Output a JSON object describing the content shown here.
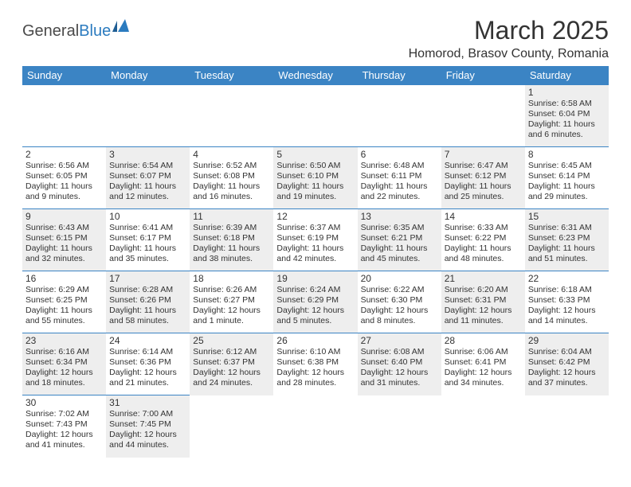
{
  "logo": {
    "part1": "General",
    "part2": "Blue"
  },
  "title": "March 2025",
  "location": "Homorod, Brasov County, Romania",
  "styling": {
    "header_bg": "#3b84c4",
    "header_fg": "#ffffff",
    "cell_border": "#3b84c4",
    "shaded_bg": "#eeeeee",
    "text_color": "#333333",
    "logo_accent": "#2b7bbf",
    "page_bg": "#ffffff",
    "month_title_fontsize": 32,
    "location_fontsize": 16,
    "dayhead_fontsize": 13,
    "daynum_fontsize": 12,
    "dayinfo_fontsize": 10.5
  },
  "day_headers": [
    "Sunday",
    "Monday",
    "Tuesday",
    "Wednesday",
    "Thursday",
    "Friday",
    "Saturday"
  ],
  "weeks": [
    [
      null,
      null,
      null,
      null,
      null,
      null,
      {
        "n": "1",
        "sr": "6:58 AM",
        "ss": "6:04 PM",
        "dl": "11 hours and 6 minutes."
      }
    ],
    [
      {
        "n": "2",
        "sr": "6:56 AM",
        "ss": "6:05 PM",
        "dl": "11 hours and 9 minutes."
      },
      {
        "n": "3",
        "sr": "6:54 AM",
        "ss": "6:07 PM",
        "dl": "11 hours and 12 minutes."
      },
      {
        "n": "4",
        "sr": "6:52 AM",
        "ss": "6:08 PM",
        "dl": "11 hours and 16 minutes."
      },
      {
        "n": "5",
        "sr": "6:50 AM",
        "ss": "6:10 PM",
        "dl": "11 hours and 19 minutes."
      },
      {
        "n": "6",
        "sr": "6:48 AM",
        "ss": "6:11 PM",
        "dl": "11 hours and 22 minutes."
      },
      {
        "n": "7",
        "sr": "6:47 AM",
        "ss": "6:12 PM",
        "dl": "11 hours and 25 minutes."
      },
      {
        "n": "8",
        "sr": "6:45 AM",
        "ss": "6:14 PM",
        "dl": "11 hours and 29 minutes."
      }
    ],
    [
      {
        "n": "9",
        "sr": "6:43 AM",
        "ss": "6:15 PM",
        "dl": "11 hours and 32 minutes."
      },
      {
        "n": "10",
        "sr": "6:41 AM",
        "ss": "6:17 PM",
        "dl": "11 hours and 35 minutes."
      },
      {
        "n": "11",
        "sr": "6:39 AM",
        "ss": "6:18 PM",
        "dl": "11 hours and 38 minutes."
      },
      {
        "n": "12",
        "sr": "6:37 AM",
        "ss": "6:19 PM",
        "dl": "11 hours and 42 minutes."
      },
      {
        "n": "13",
        "sr": "6:35 AM",
        "ss": "6:21 PM",
        "dl": "11 hours and 45 minutes."
      },
      {
        "n": "14",
        "sr": "6:33 AM",
        "ss": "6:22 PM",
        "dl": "11 hours and 48 minutes."
      },
      {
        "n": "15",
        "sr": "6:31 AM",
        "ss": "6:23 PM",
        "dl": "11 hours and 51 minutes."
      }
    ],
    [
      {
        "n": "16",
        "sr": "6:29 AM",
        "ss": "6:25 PM",
        "dl": "11 hours and 55 minutes."
      },
      {
        "n": "17",
        "sr": "6:28 AM",
        "ss": "6:26 PM",
        "dl": "11 hours and 58 minutes."
      },
      {
        "n": "18",
        "sr": "6:26 AM",
        "ss": "6:27 PM",
        "dl": "12 hours and 1 minute."
      },
      {
        "n": "19",
        "sr": "6:24 AM",
        "ss": "6:29 PM",
        "dl": "12 hours and 5 minutes."
      },
      {
        "n": "20",
        "sr": "6:22 AM",
        "ss": "6:30 PM",
        "dl": "12 hours and 8 minutes."
      },
      {
        "n": "21",
        "sr": "6:20 AM",
        "ss": "6:31 PM",
        "dl": "12 hours and 11 minutes."
      },
      {
        "n": "22",
        "sr": "6:18 AM",
        "ss": "6:33 PM",
        "dl": "12 hours and 14 minutes."
      }
    ],
    [
      {
        "n": "23",
        "sr": "6:16 AM",
        "ss": "6:34 PM",
        "dl": "12 hours and 18 minutes."
      },
      {
        "n": "24",
        "sr": "6:14 AM",
        "ss": "6:36 PM",
        "dl": "12 hours and 21 minutes."
      },
      {
        "n": "25",
        "sr": "6:12 AM",
        "ss": "6:37 PM",
        "dl": "12 hours and 24 minutes."
      },
      {
        "n": "26",
        "sr": "6:10 AM",
        "ss": "6:38 PM",
        "dl": "12 hours and 28 minutes."
      },
      {
        "n": "27",
        "sr": "6:08 AM",
        "ss": "6:40 PM",
        "dl": "12 hours and 31 minutes."
      },
      {
        "n": "28",
        "sr": "6:06 AM",
        "ss": "6:41 PM",
        "dl": "12 hours and 34 minutes."
      },
      {
        "n": "29",
        "sr": "6:04 AM",
        "ss": "6:42 PM",
        "dl": "12 hours and 37 minutes."
      }
    ],
    [
      {
        "n": "30",
        "sr": "7:02 AM",
        "ss": "7:43 PM",
        "dl": "12 hours and 41 minutes."
      },
      {
        "n": "31",
        "sr": "7:00 AM",
        "ss": "7:45 PM",
        "dl": "12 hours and 44 minutes."
      },
      null,
      null,
      null,
      null,
      null
    ]
  ],
  "labels": {
    "sunrise": "Sunrise:",
    "sunset": "Sunset:",
    "daylight": "Daylight:"
  }
}
